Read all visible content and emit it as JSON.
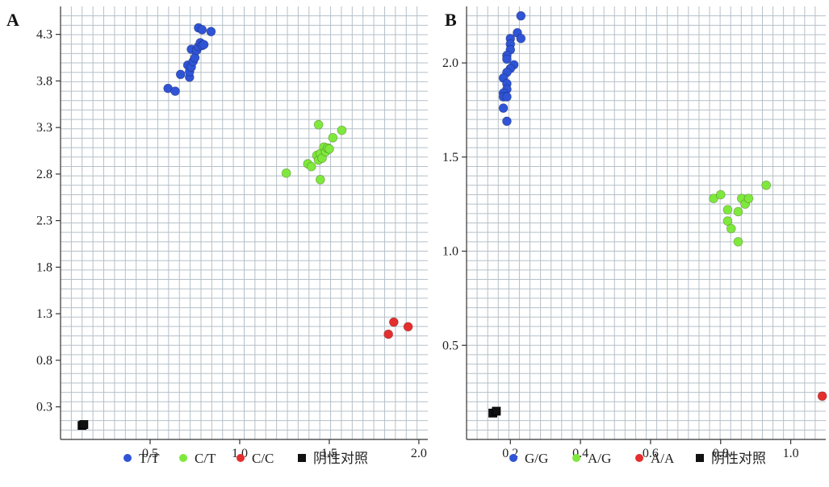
{
  "chart_data": [
    {
      "panel": "A",
      "type": "scatter",
      "xlim": [
        0.0,
        2.05
      ],
      "ylim": [
        -0.05,
        4.6
      ],
      "xticks": [
        0.5,
        1.0,
        1.5,
        2.0
      ],
      "xtick_labels": [
        "0.5",
        "1.0",
        "1.5",
        "2.0"
      ],
      "yticks": [
        0.3,
        0.8,
        1.3,
        1.8,
        2.3,
        2.8,
        3.3,
        3.8,
        4.3
      ],
      "ytick_labels": [
        "0.3",
        "0.8",
        "1.3",
        "1.8",
        "2.3",
        "2.8",
        "3.3",
        "3.8",
        "4.3"
      ],
      "grid": true,
      "legend_position": "bottom",
      "series": [
        {
          "name": "T/T",
          "color": "#2f54d6",
          "marker": "circle",
          "points": [
            [
              0.6,
              3.72
            ],
            [
              0.64,
              3.69
            ],
            [
              0.67,
              3.87
            ],
            [
              0.71,
              3.97
            ],
            [
              0.72,
              3.84
            ],
            [
              0.72,
              3.9
            ],
            [
              0.73,
              3.95
            ],
            [
              0.74,
              4.01
            ],
            [
              0.73,
              4.14
            ],
            [
              0.75,
              4.05
            ],
            [
              0.76,
              4.13
            ],
            [
              0.77,
              4.17
            ],
            [
              0.78,
              4.21
            ],
            [
              0.79,
              4.18
            ],
            [
              0.8,
              4.19
            ],
            [
              0.77,
              4.37
            ],
            [
              0.79,
              4.35
            ],
            [
              0.84,
              4.33
            ]
          ]
        },
        {
          "name": "C/T",
          "color": "#7fe83c",
          "marker": "circle",
          "points": [
            [
              1.26,
              2.81
            ],
            [
              1.38,
              2.91
            ],
            [
              1.4,
              2.88
            ],
            [
              1.43,
              3.0
            ],
            [
              1.44,
              2.95
            ],
            [
              1.45,
              3.02
            ],
            [
              1.46,
              2.97
            ],
            [
              1.47,
              3.09
            ],
            [
              1.48,
              3.04
            ],
            [
              1.49,
              3.08
            ],
            [
              1.5,
              3.07
            ],
            [
              1.52,
              3.19
            ],
            [
              1.44,
              3.33
            ],
            [
              1.57,
              3.27
            ],
            [
              1.45,
              2.74
            ]
          ]
        },
        {
          "name": "C/C",
          "color": "#e52e2e",
          "marker": "circle",
          "points": [
            [
              1.83,
              1.08
            ],
            [
              1.86,
              1.21
            ],
            [
              1.94,
              1.16
            ]
          ]
        },
        {
          "name": "阴性对照",
          "color": "#111111",
          "marker": "square",
          "points": [
            [
              0.12,
              0.1
            ],
            [
              0.13,
              0.11
            ]
          ]
        }
      ]
    },
    {
      "panel": "B",
      "type": "scatter",
      "xlim": [
        0.075,
        1.1
      ],
      "ylim": [
        0.0,
        2.3
      ],
      "xticks": [
        0.2,
        0.4,
        0.6,
        0.8,
        1.0
      ],
      "xtick_labels": [
        "0.2",
        "0.4",
        "0.6",
        "0.8",
        "1.0"
      ],
      "yticks": [
        0.5,
        1.0,
        1.5,
        2.0
      ],
      "ytick_labels": [
        "0.5",
        "1.0",
        "1.5",
        "2.0"
      ],
      "grid": true,
      "legend_position": "bottom",
      "series": [
        {
          "name": "G/G",
          "color": "#2f54d6",
          "marker": "circle",
          "points": [
            [
              0.23,
              2.25
            ],
            [
              0.22,
              2.16
            ],
            [
              0.2,
              2.13
            ],
            [
              0.23,
              2.13
            ],
            [
              0.2,
              2.1
            ],
            [
              0.2,
              2.07
            ],
            [
              0.19,
              2.04
            ],
            [
              0.19,
              2.02
            ],
            [
              0.21,
              1.99
            ],
            [
              0.2,
              1.97
            ],
            [
              0.19,
              1.95
            ],
            [
              0.18,
              1.92
            ],
            [
              0.19,
              1.89
            ],
            [
              0.19,
              1.86
            ],
            [
              0.18,
              1.84
            ],
            [
              0.18,
              1.82
            ],
            [
              0.18,
              1.76
            ],
            [
              0.19,
              1.69
            ],
            [
              0.19,
              1.82
            ]
          ]
        },
        {
          "name": "A/G",
          "color": "#7fe83c",
          "marker": "circle",
          "points": [
            [
              0.78,
              1.28
            ],
            [
              0.8,
              1.3
            ],
            [
              0.82,
              1.22
            ],
            [
              0.85,
              1.21
            ],
            [
              0.86,
              1.28
            ],
            [
              0.87,
              1.25
            ],
            [
              0.88,
              1.28
            ],
            [
              0.82,
              1.16
            ],
            [
              0.83,
              1.12
            ],
            [
              0.85,
              1.05
            ],
            [
              0.93,
              1.35
            ]
          ]
        },
        {
          "name": "A/A",
          "color": "#e52e2e",
          "marker": "circle",
          "points": [
            [
              1.09,
              0.23
            ]
          ]
        },
        {
          "name": "阴性对照",
          "color": "#111111",
          "marker": "square",
          "points": [
            [
              0.15,
              0.14
            ],
            [
              0.16,
              0.15
            ]
          ]
        }
      ]
    }
  ]
}
